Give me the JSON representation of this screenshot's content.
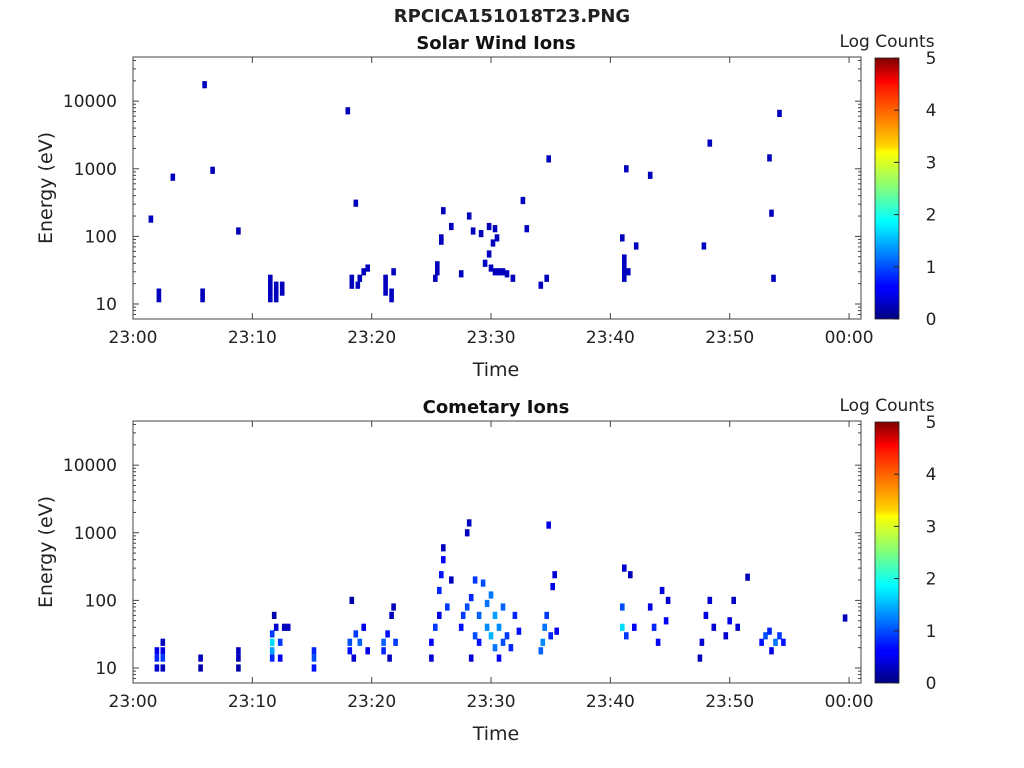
{
  "figure_title": "RPCICA151018T23.PNG",
  "chart_data": [
    {
      "type": "heatmap",
      "title": "Solar Wind Ions",
      "xlabel": "Time",
      "ylabel": "Energy (eV)",
      "x_range": [
        "23:00",
        "00:01"
      ],
      "x_ticks": [
        "23:00",
        "23:10",
        "23:20",
        "23:30",
        "23:40",
        "23:50",
        "00:00"
      ],
      "y_scale": "log",
      "y_range": [
        6,
        45000
      ],
      "y_ticks": [
        "10",
        "100",
        "1000",
        "10000"
      ],
      "colorbar": {
        "label": "Log Counts",
        "range": [
          0,
          5
        ],
        "ticks": [
          "0",
          "1",
          "2",
          "3",
          "4",
          "5"
        ]
      },
      "points": [
        [
          "23:01:30",
          180,
          0.3
        ],
        [
          "23:02:10",
          12,
          0.3
        ],
        [
          "23:02:10",
          15,
          0.3
        ],
        [
          "23:03:20",
          750,
          0.3
        ],
        [
          "23:05:50",
          12,
          0.3
        ],
        [
          "23:05:50",
          15,
          0.3
        ],
        [
          "23:06:00",
          17500,
          0.3
        ],
        [
          "23:06:40",
          950,
          0.3
        ],
        [
          "23:08:50",
          120,
          0.3
        ],
        [
          "23:11:30",
          12,
          0.3
        ],
        [
          "23:11:30",
          15,
          0.3
        ],
        [
          "23:11:30",
          19,
          0.3
        ],
        [
          "23:11:30",
          24,
          0.3
        ],
        [
          "23:12:00",
          12,
          0.3
        ],
        [
          "23:12:00",
          15,
          0.3
        ],
        [
          "23:12:00",
          19,
          0.3
        ],
        [
          "23:12:30",
          15,
          0.3
        ],
        [
          "23:12:30",
          19,
          0.3
        ],
        [
          "23:18:00",
          7200,
          0.3
        ],
        [
          "23:18:20",
          19,
          0.3
        ],
        [
          "23:18:20",
          24,
          0.3
        ],
        [
          "23:18:40",
          310,
          0.3
        ],
        [
          "23:18:50",
          19,
          0.3
        ],
        [
          "23:19:00",
          24,
          0.3
        ],
        [
          "23:19:20",
          30,
          0.3
        ],
        [
          "23:19:40",
          34,
          0.3
        ],
        [
          "23:21:10",
          15,
          0.3
        ],
        [
          "23:21:10",
          19,
          0.3
        ],
        [
          "23:21:10",
          24,
          0.3
        ],
        [
          "23:21:40",
          12,
          0.3
        ],
        [
          "23:21:40",
          15,
          0.3
        ],
        [
          "23:21:50",
          30,
          0.3
        ],
        [
          "23:25:20",
          24,
          0.3
        ],
        [
          "23:25:30",
          30,
          0.3
        ],
        [
          "23:25:30",
          38,
          0.3
        ],
        [
          "23:25:50",
          85,
          0.3
        ],
        [
          "23:25:50",
          95,
          0.3
        ],
        [
          "23:26:00",
          240,
          0.3
        ],
        [
          "23:26:40",
          140,
          0.3
        ],
        [
          "23:27:30",
          28,
          0.3
        ],
        [
          "23:28:10",
          200,
          0.3
        ],
        [
          "23:28:30",
          120,
          0.3
        ],
        [
          "23:29:10",
          110,
          0.3
        ],
        [
          "23:29:30",
          40,
          0.3
        ],
        [
          "23:29:50",
          140,
          0.3
        ],
        [
          "23:29:50",
          55,
          0.3
        ],
        [
          "23:30:00",
          34,
          0.3
        ],
        [
          "23:30:10",
          80,
          0.3
        ],
        [
          "23:30:20",
          130,
          0.3
        ],
        [
          "23:30:20",
          30,
          0.3
        ],
        [
          "23:30:30",
          95,
          0.3
        ],
        [
          "23:30:40",
          30,
          0.3
        ],
        [
          "23:31:00",
          30,
          0.3
        ],
        [
          "23:31:20",
          28,
          0.3
        ],
        [
          "23:31:50",
          24,
          0.3
        ],
        [
          "23:32:40",
          340,
          0.3
        ],
        [
          "23:33:00",
          130,
          0.3
        ],
        [
          "23:34:10",
          19,
          0.3
        ],
        [
          "23:34:40",
          24,
          0.3
        ],
        [
          "23:34:50",
          1400,
          0.3
        ],
        [
          "23:41:00",
          95,
          0.3
        ],
        [
          "23:41:10",
          24,
          0.3
        ],
        [
          "23:41:10",
          30,
          0.3
        ],
        [
          "23:41:10",
          38,
          0.3
        ],
        [
          "23:41:10",
          48,
          0.3
        ],
        [
          "23:41:20",
          1000,
          0.3
        ],
        [
          "23:41:30",
          30,
          0.3
        ],
        [
          "23:42:10",
          72,
          0.3
        ],
        [
          "23:43:20",
          800,
          0.3
        ],
        [
          "23:47:50",
          72,
          0.3
        ],
        [
          "23:48:20",
          2400,
          0.3
        ],
        [
          "23:53:20",
          1450,
          0.3
        ],
        [
          "23:53:30",
          220,
          0.3
        ],
        [
          "23:53:40",
          24,
          0.3
        ],
        [
          "23:54:10",
          6600,
          0.3
        ]
      ]
    },
    {
      "type": "heatmap",
      "title": "Cometary Ions",
      "xlabel": "Time",
      "ylabel": "Energy (eV)",
      "x_range": [
        "23:00",
        "00:01"
      ],
      "x_ticks": [
        "23:00",
        "23:10",
        "23:20",
        "23:30",
        "23:40",
        "23:50",
        "00:00"
      ],
      "y_scale": "log",
      "y_range": [
        6,
        45000
      ],
      "y_ticks": [
        "10",
        "100",
        "1000",
        "10000"
      ],
      "colorbar": {
        "label": "Log Counts",
        "range": [
          0,
          5
        ],
        "ticks": [
          "0",
          "1",
          "2",
          "3",
          "4",
          "5"
        ]
      },
      "points": [
        [
          "23:02:00",
          10,
          0.4
        ],
        [
          "23:02:00",
          14,
          0.8
        ],
        [
          "23:02:00",
          18,
          0.5
        ],
        [
          "23:02:30",
          10,
          0.3
        ],
        [
          "23:02:30",
          14,
          0.9
        ],
        [
          "23:02:30",
          18,
          0.5
        ],
        [
          "23:02:30",
          24,
          0.3
        ],
        [
          "23:05:40",
          10,
          0.2
        ],
        [
          "23:05:40",
          14,
          0.3
        ],
        [
          "23:08:50",
          10,
          0.2
        ],
        [
          "23:08:50",
          14,
          0.3
        ],
        [
          "23:08:50",
          18,
          0.3
        ],
        [
          "23:11:40",
          18,
          1.4
        ],
        [
          "23:11:40",
          24,
          1.7
        ],
        [
          "23:11:40",
          32,
          0.9
        ],
        [
          "23:11:40",
          14,
          0.8
        ],
        [
          "23:12:00",
          40,
          0.4
        ],
        [
          "23:12:20",
          24,
          0.9
        ],
        [
          "23:12:20",
          14,
          0.6
        ],
        [
          "23:12:40",
          40,
          0.3
        ],
        [
          "23:13:00",
          40,
          0.3
        ],
        [
          "23:11:50",
          60,
          0.2
        ],
        [
          "23:15:10",
          10,
          0.7
        ],
        [
          "23:15:10",
          14,
          1.0
        ],
        [
          "23:15:10",
          18,
          0.8
        ],
        [
          "23:18:10",
          18,
          0.7
        ],
        [
          "23:18:10",
          24,
          1.0
        ],
        [
          "23:18:30",
          14,
          0.4
        ],
        [
          "23:18:40",
          32,
          0.9
        ],
        [
          "23:19:00",
          24,
          1.1
        ],
        [
          "23:19:20",
          40,
          0.5
        ],
        [
          "23:19:40",
          18,
          0.5
        ],
        [
          "23:18:20",
          100,
          0.2
        ],
        [
          "23:21:00",
          18,
          0.8
        ],
        [
          "23:21:00",
          24,
          1.1
        ],
        [
          "23:21:20",
          32,
          0.7
        ],
        [
          "23:21:30",
          14,
          0.3
        ],
        [
          "23:21:40",
          60,
          0.3
        ],
        [
          "23:21:50",
          80,
          0.3
        ],
        [
          "23:22:00",
          24,
          0.9
        ],
        [
          "23:25:00",
          14,
          0.4
        ],
        [
          "23:25:00",
          24,
          0.6
        ],
        [
          "23:25:20",
          40,
          0.9
        ],
        [
          "23:25:40",
          60,
          0.5
        ],
        [
          "23:25:40",
          140,
          0.8
        ],
        [
          "23:25:50",
          240,
          0.7
        ],
        [
          "23:26:00",
          400,
          0.6
        ],
        [
          "23:26:00",
          600,
          0.3
        ],
        [
          "23:26:20",
          80,
          0.9
        ],
        [
          "23:26:40",
          200,
          0.3
        ],
        [
          "23:27:30",
          40,
          0.7
        ],
        [
          "23:27:40",
          60,
          0.9
        ],
        [
          "23:28:00",
          80,
          1.0
        ],
        [
          "23:28:20",
          14,
          0.4
        ],
        [
          "23:28:20",
          110,
          0.8
        ],
        [
          "23:28:40",
          200,
          0.9
        ],
        [
          "23:28:40",
          30,
          1.0
        ],
        [
          "23:29:00",
          24,
          0.7
        ],
        [
          "23:29:00",
          60,
          1.1
        ],
        [
          "23:29:20",
          180,
          1.0
        ],
        [
          "23:29:40",
          40,
          1.3
        ],
        [
          "23:29:40",
          90,
          1.2
        ],
        [
          "23:30:00",
          30,
          1.5
        ],
        [
          "23:30:00",
          120,
          1.2
        ],
        [
          "23:30:20",
          20,
          1.2
        ],
        [
          "23:30:20",
          60,
          1.4
        ],
        [
          "23:30:40",
          14,
          0.6
        ],
        [
          "23:30:40",
          40,
          1.3
        ],
        [
          "23:31:00",
          24,
          1.0
        ],
        [
          "23:31:00",
          80,
          1.1
        ],
        [
          "23:31:20",
          30,
          0.9
        ],
        [
          "23:31:40",
          20,
          0.8
        ],
        [
          "23:32:00",
          60,
          0.8
        ],
        [
          "23:32:20",
          35,
          0.7
        ],
        [
          "23:28:10",
          1400,
          0.3
        ],
        [
          "23:28:00",
          1000,
          0.3
        ],
        [
          "23:34:10",
          18,
          1.1
        ],
        [
          "23:34:20",
          24,
          1.3
        ],
        [
          "23:34:30",
          40,
          1.2
        ],
        [
          "23:34:40",
          60,
          0.9
        ],
        [
          "23:34:50",
          1300,
          0.5
        ],
        [
          "23:35:00",
          30,
          0.8
        ],
        [
          "23:35:10",
          160,
          0.5
        ],
        [
          "23:35:20",
          240,
          0.4
        ],
        [
          "23:35:30",
          35,
          0.6
        ],
        [
          "23:41:00",
          40,
          1.7
        ],
        [
          "23:41:00",
          80,
          1.0
        ],
        [
          "23:41:10",
          300,
          0.4
        ],
        [
          "23:41:20",
          30,
          0.9
        ],
        [
          "23:41:40",
          240,
          0.3
        ],
        [
          "23:42:00",
          40,
          0.6
        ],
        [
          "23:43:20",
          80,
          0.5
        ],
        [
          "23:43:40",
          40,
          0.8
        ],
        [
          "23:44:00",
          24,
          0.6
        ],
        [
          "23:44:20",
          140,
          0.5
        ],
        [
          "23:44:40",
          50,
          0.6
        ],
        [
          "23:44:50",
          100,
          0.4
        ],
        [
          "23:47:30",
          14,
          0.3
        ],
        [
          "23:47:40",
          24,
          0.4
        ],
        [
          "23:48:00",
          60,
          0.5
        ],
        [
          "23:48:20",
          100,
          0.4
        ],
        [
          "23:48:40",
          40,
          0.4
        ],
        [
          "23:49:40",
          30,
          0.4
        ],
        [
          "23:50:00",
          50,
          0.5
        ],
        [
          "23:50:20",
          100,
          0.3
        ],
        [
          "23:50:40",
          40,
          0.4
        ],
        [
          "23:51:30",
          220,
          0.3
        ],
        [
          "23:52:40",
          24,
          0.7
        ],
        [
          "23:53:00",
          30,
          1.0
        ],
        [
          "23:53:20",
          35,
          0.8
        ],
        [
          "23:53:30",
          18,
          0.5
        ],
        [
          "23:53:50",
          24,
          1.2
        ],
        [
          "23:54:10",
          30,
          0.9
        ],
        [
          "23:54:30",
          24,
          0.7
        ],
        [
          "23:59:40",
          55,
          0.3
        ]
      ]
    }
  ]
}
